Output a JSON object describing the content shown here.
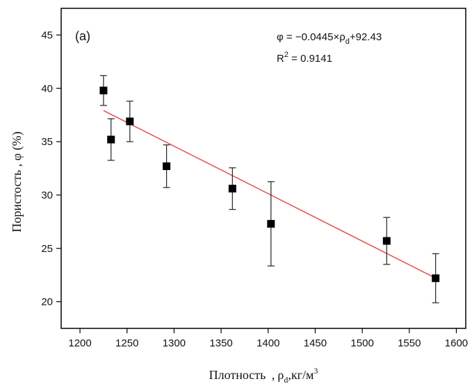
{
  "chart_data": {
    "type": "scatter",
    "panel_label": "(a)",
    "xlabel": {
      "main": "Плотность ",
      "comma1": ",",
      "symbol": "ρ",
      "sub": "d",
      "comma2": ",",
      "unit": "кг/м",
      "sup": "3"
    },
    "ylabel": "Пористость , φ (%)",
    "xlim": [
      1180,
      1610
    ],
    "ylim": [
      17.5,
      47.5
    ],
    "x_ticks": [
      1200,
      1250,
      1300,
      1350,
      1400,
      1450,
      1500,
      1550,
      1600
    ],
    "y_ticks": [
      20,
      25,
      30,
      35,
      40,
      45
    ],
    "series": [
      {
        "marker": "square",
        "color": "#000000",
        "points": [
          {
            "x": 1225,
            "y": 39.8,
            "err": 1.4
          },
          {
            "x": 1233,
            "y": 35.2,
            "err": 1.95
          },
          {
            "x": 1253,
            "y": 36.9,
            "err": 1.9
          },
          {
            "x": 1292,
            "y": 32.7,
            "err": 2.0
          },
          {
            "x": 1362,
            "y": 30.6,
            "err": 1.95
          },
          {
            "x": 1403,
            "y": 27.3,
            "err": 3.95
          },
          {
            "x": 1526,
            "y": 25.7,
            "err": 2.2
          },
          {
            "x": 1578,
            "y": 22.2,
            "err": 2.3
          }
        ]
      }
    ],
    "fit_line": {
      "color": "#e8575c",
      "x_range": [
        1225,
        1578
      ],
      "slope": -0.0445,
      "intercept": 92.43
    },
    "annotations": {
      "equation": {
        "lhs": "φ = −0.0445×ρ",
        "sub": "d",
        "rhs": "+92.43"
      },
      "r2": {
        "prefix": "R",
        "sup": "2",
        "rest": " = 0.9141"
      }
    },
    "grid": false
  }
}
